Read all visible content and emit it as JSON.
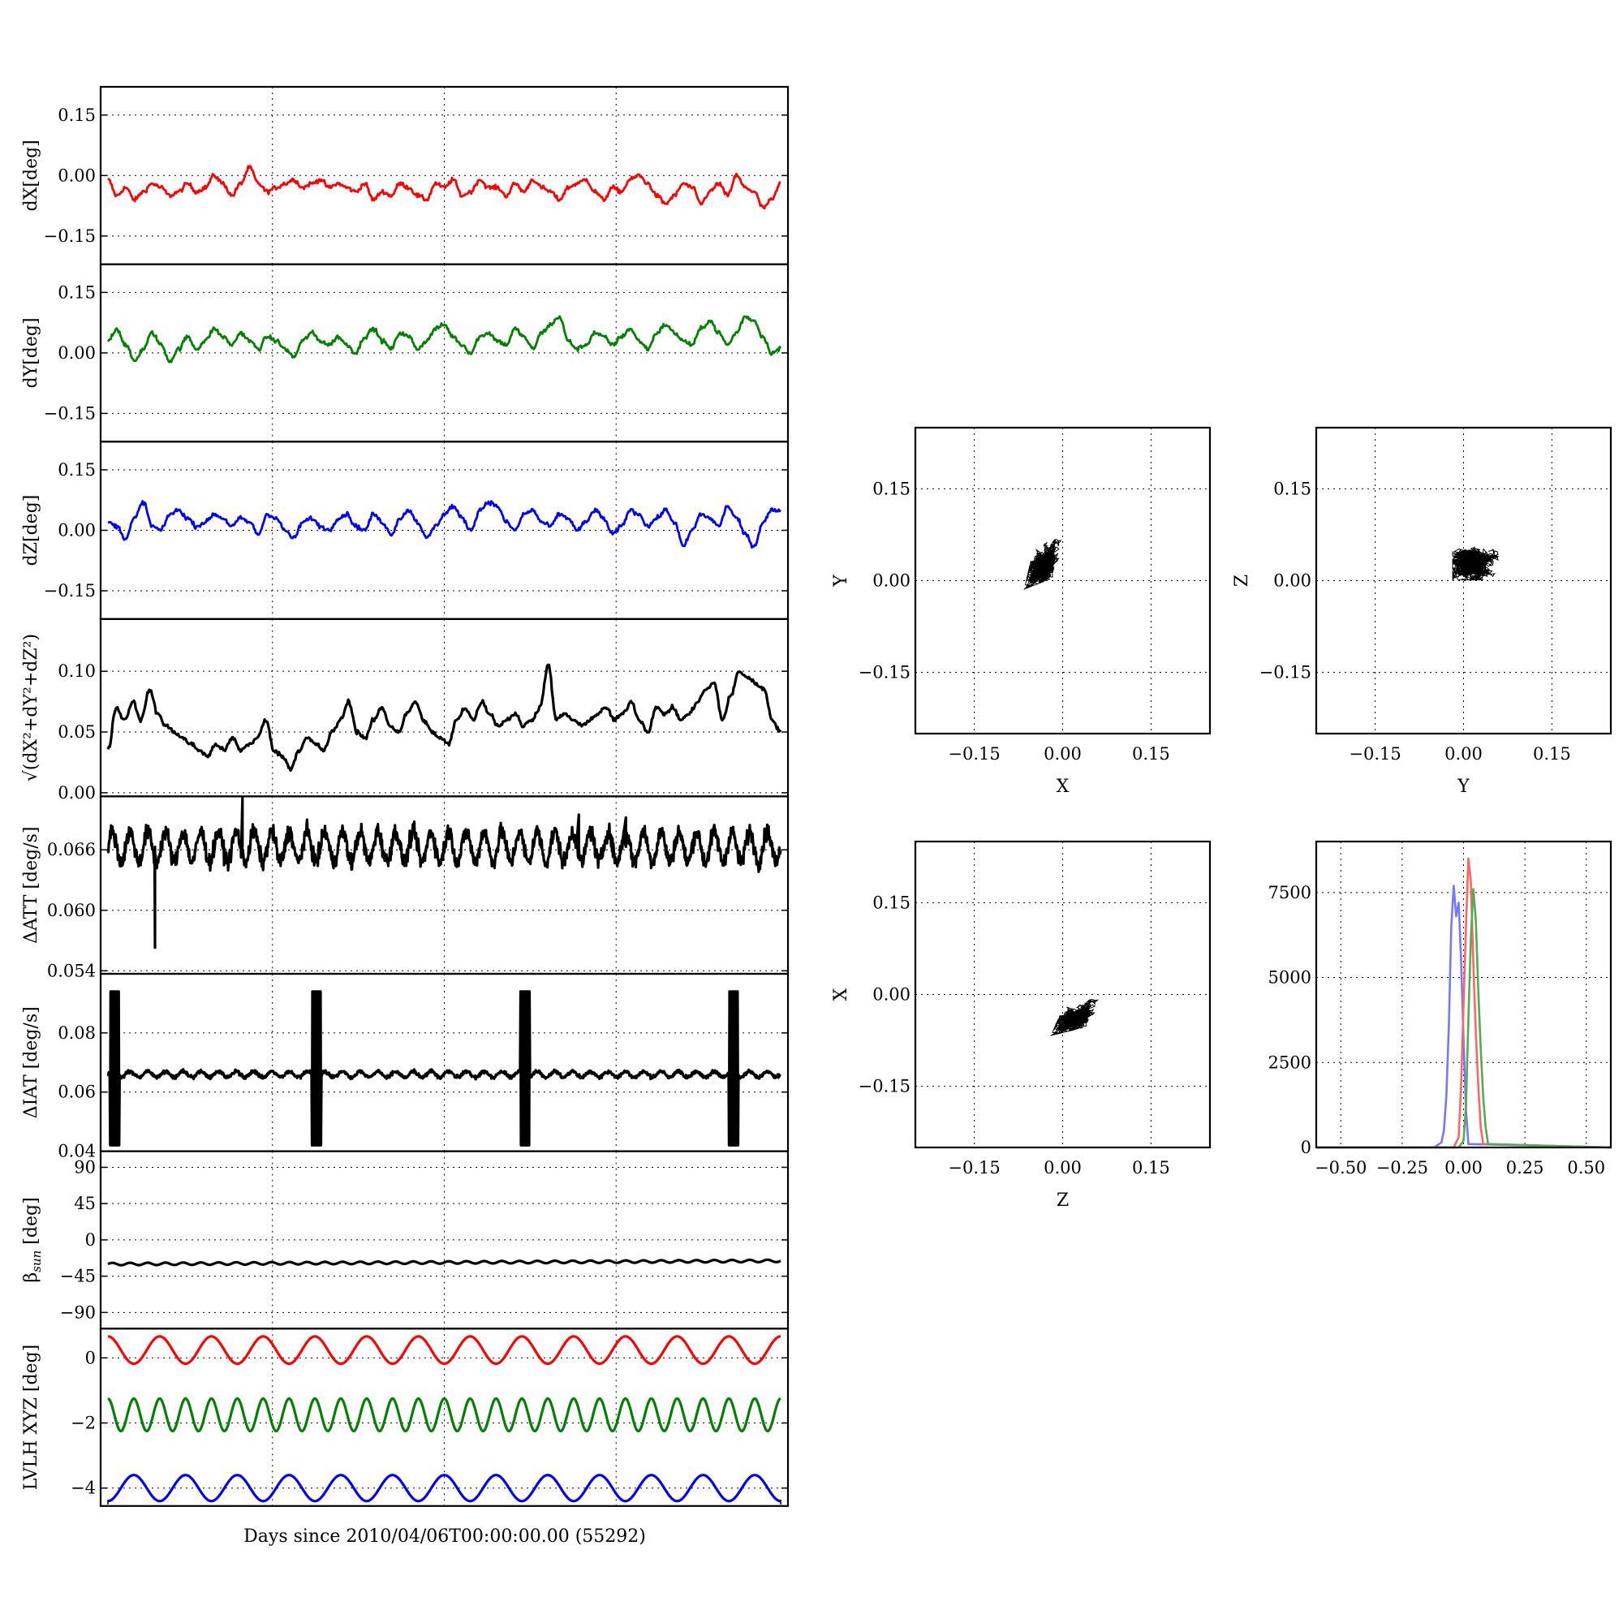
{
  "chart_data": [
    {
      "type": "line",
      "ylabel": "dX[deg]",
      "x_range": [
        0,
        1
      ],
      "ylim": [
        -0.22,
        0.22
      ],
      "yticks": [
        0.15,
        0.0,
        -0.15
      ],
      "ytick_labels": [
        "0.15",
        "0.00",
        "−0.15"
      ],
      "series": [
        {
          "color": "#ff0000",
          "y": [
            -0.01,
            -0.05,
            -0.03,
            -0.06,
            -0.04,
            -0.02,
            -0.03,
            -0.05,
            -0.04,
            -0.02,
            -0.04,
            -0.03,
            0.0,
            -0.02,
            -0.05,
            -0.02,
            0.02,
            -0.02,
            -0.04,
            -0.03,
            -0.02,
            -0.01,
            -0.03,
            -0.02,
            -0.01,
            -0.03,
            -0.02,
            -0.03,
            -0.04,
            -0.02,
            -0.06,
            -0.04,
            -0.05,
            -0.02,
            -0.03,
            -0.05,
            -0.06,
            -0.02,
            -0.03,
            -0.01,
            -0.05,
            -0.04,
            -0.01,
            -0.03,
            -0.03,
            -0.05,
            -0.02,
            -0.04,
            -0.01,
            -0.03,
            -0.04,
            -0.06,
            -0.03,
            -0.02,
            -0.01,
            -0.04,
            -0.06,
            -0.03,
            -0.04,
            -0.01,
            0.0,
            -0.02,
            -0.05,
            -0.07,
            -0.05,
            -0.02,
            -0.03,
            -0.07,
            -0.04,
            -0.02,
            -0.05,
            0.0,
            -0.03,
            -0.04,
            -0.08,
            -0.06,
            -0.02
          ]
        }
      ]
    },
    {
      "type": "line",
      "ylabel": "dY[deg]",
      "x_range": [
        0,
        1
      ],
      "ylim": [
        -0.22,
        0.22
      ],
      "yticks": [
        0.15,
        0.0,
        -0.15
      ],
      "ytick_labels": [
        "0.15",
        "0.00",
        "−0.15"
      ],
      "series": [
        {
          "color": "#007f00",
          "y": [
            0.03,
            0.06,
            0.02,
            -0.02,
            0.01,
            0.05,
            0.02,
            -0.02,
            0.01,
            0.04,
            0.01,
            0.03,
            0.06,
            0.04,
            0.02,
            0.05,
            0.03,
            0.01,
            0.04,
            0.03,
            0.01,
            -0.01,
            0.03,
            0.05,
            0.03,
            0.02,
            0.04,
            0.02,
            0.0,
            0.04,
            0.06,
            0.03,
            0.01,
            0.05,
            0.04,
            0.01,
            0.03,
            0.06,
            0.07,
            0.04,
            0.02,
            0.0,
            0.04,
            0.05,
            0.03,
            0.02,
            0.06,
            0.04,
            0.01,
            0.05,
            0.07,
            0.09,
            0.03,
            0.01,
            0.02,
            0.05,
            0.04,
            0.02,
            0.04,
            0.06,
            0.03,
            0.01,
            0.05,
            0.07,
            0.05,
            0.03,
            0.02,
            0.06,
            0.08,
            0.05,
            0.02,
            0.05,
            0.09,
            0.08,
            0.04,
            0.0,
            0.01
          ]
        }
      ]
    },
    {
      "type": "line",
      "ylabel": "dZ[deg]",
      "x_range": [
        0,
        1
      ],
      "ylim": [
        -0.22,
        0.22
      ],
      "yticks": [
        0.15,
        0.0,
        -0.15
      ],
      "ytick_labels": [
        "0.15",
        "0.00",
        "−0.15"
      ],
      "series": [
        {
          "color": "#0000ff",
          "y": [
            0.02,
            0.01,
            -0.02,
            0.03,
            0.07,
            0.01,
            0.0,
            0.04,
            0.05,
            0.03,
            0.01,
            0.02,
            0.04,
            0.03,
            0.01,
            0.03,
            0.02,
            -0.01,
            0.04,
            0.03,
            0.0,
            -0.02,
            0.02,
            0.03,
            0.01,
            0.0,
            0.03,
            0.04,
            0.01,
            0.0,
            0.04,
            0.02,
            -0.01,
            0.03,
            0.05,
            0.02,
            -0.02,
            0.01,
            0.04,
            0.06,
            0.03,
            0.0,
            0.05,
            0.07,
            0.06,
            0.02,
            0.0,
            0.04,
            0.05,
            0.02,
            0.01,
            0.04,
            0.03,
            0.0,
            0.02,
            0.05,
            0.03,
            -0.01,
            0.01,
            0.05,
            0.04,
            0.01,
            0.03,
            0.05,
            0.02,
            -0.04,
            0.0,
            0.04,
            0.03,
            0.01,
            0.06,
            0.03,
            -0.01,
            -0.04,
            0.02,
            0.05,
            0.05
          ]
        }
      ]
    },
    {
      "type": "line",
      "ylabel": "√(dX²+dY²+dZ²)",
      "x_range": [
        0,
        1
      ],
      "ylim": [
        -0.003,
        0.143
      ],
      "yticks": [
        0.1,
        0.05,
        0.0
      ],
      "ytick_labels": [
        "0.10",
        "0.05",
        "0.00"
      ],
      "series": [
        {
          "color": "#000000",
          "y": [
            0.035,
            0.07,
            0.06,
            0.075,
            0.06,
            0.085,
            0.065,
            0.055,
            0.05,
            0.045,
            0.04,
            0.035,
            0.03,
            0.04,
            0.035,
            0.045,
            0.035,
            0.04,
            0.045,
            0.06,
            0.035,
            0.03,
            0.02,
            0.035,
            0.045,
            0.04,
            0.035,
            0.05,
            0.06,
            0.075,
            0.05,
            0.045,
            0.06,
            0.07,
            0.055,
            0.05,
            0.065,
            0.075,
            0.06,
            0.05,
            0.045,
            0.04,
            0.06,
            0.07,
            0.06,
            0.075,
            0.065,
            0.055,
            0.06,
            0.065,
            0.055,
            0.06,
            0.07,
            0.105,
            0.06,
            0.065,
            0.06,
            0.055,
            0.06,
            0.065,
            0.07,
            0.06,
            0.065,
            0.075,
            0.06,
            0.05,
            0.07,
            0.065,
            0.07,
            0.06,
            0.065,
            0.075,
            0.085,
            0.09,
            0.06,
            0.08,
            0.1,
            0.095,
            0.09,
            0.085,
            0.06,
            0.05
          ]
        }
      ]
    },
    {
      "type": "line",
      "ylabel": "ΔATT [deg/s]",
      "x_range": [
        0,
        1
      ],
      "ylim": [
        0.0537,
        0.0713
      ],
      "yticks": [
        0.066,
        0.06,
        0.054
      ],
      "ytick_labels": [
        "0.066",
        "0.060",
        "0.054"
      ],
      "series": [
        {
          "color": "#000000",
          "periods": 38,
          "center": 0.0663,
          "amplitude": 0.0015,
          "spikes": [
            [
              0.07,
              0.0563
            ],
            [
              0.2,
              0.0712
            ],
            [
              0.7,
              0.0695
            ],
            [
              0.77,
              0.0692
            ]
          ]
        }
      ]
    },
    {
      "type": "line",
      "ylabel": "ΔIAT [deg/s]",
      "x_range": [
        0,
        1
      ],
      "ylim": [
        0.04,
        0.1
      ],
      "yticks": [
        0.08,
        0.06,
        0.04
      ],
      "ytick_labels": [
        "0.08",
        "0.06",
        "0.04"
      ],
      "series": [
        {
          "color": "#000000",
          "periods": 38,
          "center": 0.065,
          "amplitude": 0.002,
          "bursts": [
            0.01,
            0.31,
            0.62,
            0.93
          ]
        }
      ]
    },
    {
      "type": "line",
      "ylabel": "βsun [deg]",
      "ylabel_main": "β",
      "ylabel_sub": "sun",
      "ylabel_rest": " [deg]",
      "x_range": [
        0,
        1
      ],
      "ylim": [
        -110,
        110
      ],
      "yticks": [
        90,
        45,
        0,
        -45,
        -90
      ],
      "ytick_labels": [
        "90",
        "45",
        "0",
        "−45",
        "−90"
      ],
      "series": [
        {
          "color": "#000000",
          "periods": 38,
          "start": -30,
          "end": -26,
          "amplitude": 1.5
        }
      ]
    },
    {
      "type": "line",
      "ylabel": "LVLH XYZ [deg]",
      "x_range": [
        0,
        1
      ],
      "ylim": [
        -4.55,
        0.9
      ],
      "yticks": [
        0,
        -2,
        -4
      ],
      "ytick_labels": [
        "0",
        "−2",
        "−4"
      ],
      "xlabel": "Days since 2010/04/06T00:00:00.00 (55292)",
      "series": [
        {
          "color": "#ff0000",
          "periods": 13,
          "center": 0.24,
          "amplitude": 0.42,
          "phase": 0.25
        },
        {
          "color": "#007f00",
          "periods": 26,
          "center": -1.75,
          "amplitude": 0.5,
          "phase": 0.25
        },
        {
          "color": "#0000ff",
          "periods": 13,
          "center": -4.0,
          "amplitude": 0.4,
          "phase": 0.75
        }
      ]
    },
    {
      "type": "scatter",
      "xlabel": "X",
      "ylabel": "Y",
      "xlim": [
        -0.25,
        0.25
      ],
      "ylim": [
        -0.25,
        0.25
      ],
      "ticks": [
        -0.15,
        0.0,
        0.15
      ],
      "tick_labels": [
        "−0.15",
        "0.00",
        "0.15"
      ],
      "cloud": {
        "center": [
          -0.03,
          0.03
        ],
        "spread": [
          0.028,
          0.035
        ],
        "tilt": 0.5,
        "color": "#000000"
      }
    },
    {
      "type": "scatter",
      "xlabel": "Y",
      "ylabel": "Z",
      "xlim": [
        -0.25,
        0.25
      ],
      "ylim": [
        -0.25,
        0.25
      ],
      "ticks": [
        -0.15,
        0.0,
        0.15
      ],
      "tick_labels": [
        "−0.15",
        "0.00",
        "0.15"
      ],
      "cloud": {
        "center": [
          0.02,
          0.03
        ],
        "spread": [
          0.04,
          0.03
        ],
        "tilt": 0.0,
        "color": "#000000"
      }
    },
    {
      "type": "scatter",
      "xlabel": "Z",
      "ylabel": "X",
      "xlim": [
        -0.25,
        0.25
      ],
      "ylim": [
        -0.25,
        0.25
      ],
      "ticks": [
        -0.15,
        0.0,
        0.15
      ],
      "tick_labels": [
        "−0.15",
        "0.00",
        "0.15"
      ],
      "cloud": {
        "center": [
          0.025,
          -0.035
        ],
        "spread": [
          0.035,
          0.025
        ],
        "tilt": 0.55,
        "color": "#000000"
      }
    },
    {
      "type": "area",
      "xlim": [
        -0.6,
        0.6
      ],
      "ylim": [
        0,
        9000
      ],
      "xticks": [
        -0.5,
        -0.25,
        0.0,
        0.25,
        0.5
      ],
      "xtick_labels": [
        "−0.50",
        "−0.25",
        "0.00",
        "0.25",
        "0.50"
      ],
      "yticks": [
        0,
        2500,
        5000,
        7500
      ],
      "ytick_labels": [
        "0",
        "2500",
        "5000",
        "7500"
      ],
      "series": [
        {
          "color": "#7777ff",
          "x": [
            -0.6,
            -0.12,
            -0.09,
            -0.08,
            -0.07,
            -0.06,
            -0.05,
            -0.04,
            -0.03,
            -0.02,
            -0.01,
            0.0,
            0.01,
            0.02,
            0.6
          ],
          "y": [
            0,
            0,
            150,
            500,
            1500,
            3500,
            6500,
            7700,
            6800,
            7200,
            5500,
            3200,
            1100,
            100,
            0
          ]
        },
        {
          "color": "#ff6666",
          "x": [
            -0.6,
            -0.04,
            -0.02,
            -0.01,
            0.0,
            0.01,
            0.02,
            0.03,
            0.04,
            0.05,
            0.06,
            0.07,
            0.08,
            0.6
          ],
          "y": [
            0,
            0,
            300,
            1800,
            4200,
            6500,
            8500,
            7800,
            5400,
            3400,
            1800,
            600,
            100,
            0
          ]
        },
        {
          "color": "#55aa55",
          "x": [
            -0.6,
            -0.02,
            0.0,
            0.01,
            0.02,
            0.03,
            0.04,
            0.05,
            0.06,
            0.07,
            0.08,
            0.09,
            0.1,
            0.6
          ],
          "y": [
            0,
            0,
            200,
            1200,
            3800,
            6200,
            7600,
            6700,
            4600,
            2900,
            1500,
            600,
            100,
            0
          ]
        }
      ]
    }
  ]
}
